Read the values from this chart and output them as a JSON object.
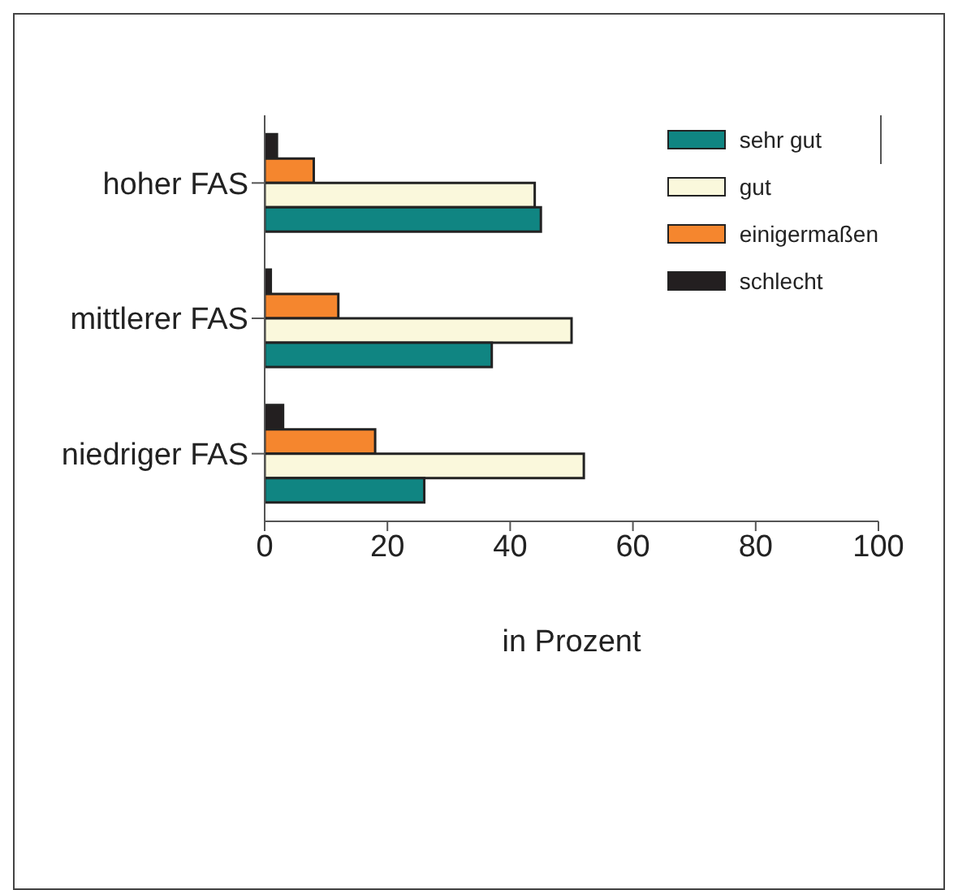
{
  "chart_data": {
    "type": "bar",
    "orientation": "horizontal",
    "xlabel": "in Prozent",
    "categories": [
      "hoher FAS",
      "mittlerer FAS",
      "niedriger FAS"
    ],
    "series": [
      {
        "name": "sehr gut",
        "color": "#108582",
        "values": [
          45,
          37,
          26
        ]
      },
      {
        "name": "gut",
        "color": "#faf8dc",
        "values": [
          44,
          50,
          52
        ]
      },
      {
        "name": "einigermaßen",
        "color": "#f5862e",
        "values": [
          8,
          12,
          18
        ]
      },
      {
        "name": "schlecht",
        "color": "#231f20",
        "values": [
          2,
          1,
          3
        ]
      }
    ],
    "xlim": [
      0,
      100
    ],
    "xticks": [
      0,
      20,
      40,
      60,
      80,
      100
    ],
    "legend": "top right",
    "grid": false
  }
}
